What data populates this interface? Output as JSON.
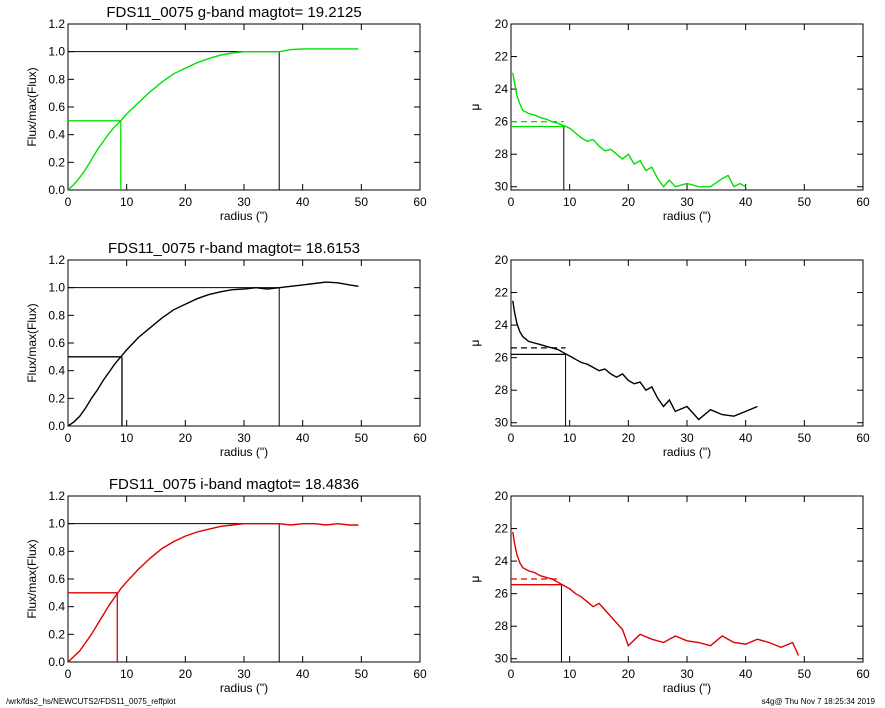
{
  "footer": {
    "left": "/wrk/fds2_hs/NEWCUTS2/FDS11_0075_reffplot",
    "right": "s4g@  Thu Nov  7 18:25:34 2019"
  },
  "chart_data": [
    {
      "type": "line",
      "panel": "g-band cumulative flux",
      "title": "FDS11_0075 g-band  magtot=       19.2125",
      "xlabel": "radius (\")",
      "ylabel": "Flux/max(Flux)",
      "xlim": [
        0,
        60
      ],
      "ylim": [
        0,
        1.2
      ],
      "xticks": [
        0,
        10,
        20,
        30,
        40,
        50,
        60
      ],
      "yticks": [
        0.0,
        0.2,
        0.4,
        0.6,
        0.8,
        1.0,
        1.2
      ],
      "color": "#00e000",
      "series": [
        {
          "x": [
            0,
            1,
            2,
            3,
            4,
            5,
            6,
            7,
            8,
            9,
            10,
            12,
            14,
            16,
            18,
            20,
            22,
            24,
            26,
            28,
            30,
            32,
            34,
            36,
            38,
            40,
            42,
            44,
            46,
            48,
            49.5
          ],
          "values": [
            0,
            0.04,
            0.09,
            0.15,
            0.22,
            0.29,
            0.35,
            0.41,
            0.46,
            0.5,
            0.55,
            0.63,
            0.71,
            0.78,
            0.84,
            0.88,
            0.92,
            0.95,
            0.975,
            0.99,
            1.0,
            1.0,
            1.0,
            1.0,
            1.015,
            1.02,
            1.02,
            1.02,
            1.02,
            1.02,
            1.02
          ]
        }
      ],
      "reference_lines": {
        "half_radius": 9,
        "half_level": 0.5,
        "total_radius": 36,
        "total_level": 1.0
      }
    },
    {
      "type": "line",
      "panel": "g-band surface brightness profile",
      "xlabel": "radius (\")",
      "ylabel": "μ",
      "xlim": [
        0,
        60
      ],
      "ylim": [
        30.2,
        20
      ],
      "xticks": [
        0,
        10,
        20,
        30,
        40,
        50,
        60
      ],
      "yticks": [
        20,
        22,
        24,
        26,
        28,
        30
      ],
      "color": "#00e000",
      "series": [
        {
          "x": [
            0.3,
            0.6,
            1,
            1.5,
            2,
            3,
            4,
            5,
            6,
            7,
            8,
            9,
            10,
            11,
            12,
            13,
            14,
            15,
            16,
            17,
            18,
            19,
            20,
            21,
            22,
            23,
            24,
            25,
            26,
            27,
            28,
            30,
            32,
            34,
            36,
            37,
            38,
            39,
            40
          ],
          "values": [
            23,
            23.6,
            24.4,
            24.9,
            25.3,
            25.5,
            25.6,
            25.75,
            25.85,
            26.0,
            26.1,
            26.25,
            26.4,
            26.7,
            27.0,
            27.2,
            27.1,
            27.5,
            27.8,
            27.7,
            28.0,
            28.3,
            28.0,
            28.6,
            28.4,
            29.0,
            28.8,
            29.5,
            30.0,
            29.6,
            30.0,
            29.8,
            30.0,
            30.0,
            29.5,
            29.3,
            30.0,
            29.8,
            30.0
          ]
        }
      ],
      "reference_lines": {
        "radius": 9,
        "mu_solid": 26.3,
        "mu_dashed": 26.0
      }
    },
    {
      "type": "line",
      "panel": "r-band cumulative flux",
      "title": "FDS11_0075 r-band  magtot=       18.6153",
      "xlabel": "radius (\")",
      "ylabel": "Flux/max(Flux)",
      "xlim": [
        0,
        60
      ],
      "ylim": [
        0,
        1.2
      ],
      "xticks": [
        0,
        10,
        20,
        30,
        40,
        50,
        60
      ],
      "yticks": [
        0.0,
        0.2,
        0.4,
        0.6,
        0.8,
        1.0,
        1.2
      ],
      "color": "#000000",
      "series": [
        {
          "x": [
            0,
            1,
            2,
            3,
            4,
            5,
            6,
            7,
            8,
            9,
            10,
            12,
            14,
            16,
            18,
            20,
            22,
            24,
            26,
            28,
            30,
            32,
            34,
            36,
            38,
            40,
            42,
            44,
            46,
            48,
            49.5
          ],
          "values": [
            0,
            0.03,
            0.07,
            0.13,
            0.2,
            0.26,
            0.33,
            0.39,
            0.45,
            0.5,
            0.55,
            0.64,
            0.71,
            0.78,
            0.84,
            0.88,
            0.92,
            0.95,
            0.97,
            0.985,
            0.99,
            1.0,
            0.99,
            1.0,
            1.01,
            1.02,
            1.03,
            1.04,
            1.035,
            1.02,
            1.01
          ]
        }
      ],
      "reference_lines": {
        "half_radius": 9.2,
        "half_level": 0.5,
        "total_radius": 36,
        "total_level": 1.0
      }
    },
    {
      "type": "line",
      "panel": "r-band surface brightness profile",
      "xlabel": "radius (\")",
      "ylabel": "μ",
      "xlim": [
        0,
        60
      ],
      "ylim": [
        30.2,
        20
      ],
      "xticks": [
        0,
        10,
        20,
        30,
        40,
        50,
        60
      ],
      "yticks": [
        20,
        22,
        24,
        26,
        28,
        30
      ],
      "color": "#000000",
      "series": [
        {
          "x": [
            0.3,
            0.6,
            1,
            1.5,
            2,
            3,
            4,
            5,
            6,
            7,
            8,
            9,
            10,
            11,
            12,
            13,
            14,
            15,
            16,
            17,
            18,
            19,
            20,
            21,
            22,
            23,
            24,
            25,
            26,
            27,
            28,
            30,
            32,
            34,
            36,
            38,
            40,
            42
          ],
          "values": [
            22.5,
            23.2,
            23.9,
            24.4,
            24.7,
            25.0,
            25.1,
            25.2,
            25.3,
            25.4,
            25.5,
            25.7,
            25.9,
            26.1,
            26.3,
            26.4,
            26.6,
            26.8,
            26.7,
            27.0,
            27.2,
            27.0,
            27.4,
            27.6,
            27.5,
            28.0,
            27.8,
            28.5,
            29.0,
            28.6,
            29.3,
            29.0,
            29.8,
            29.2,
            29.5,
            29.6,
            29.3,
            29.0
          ]
        }
      ],
      "reference_lines": {
        "radius": 9.3,
        "mu_solid": 25.8,
        "mu_dashed": 25.4
      }
    },
    {
      "type": "line",
      "panel": "i-band cumulative flux",
      "title": "FDS11_0075 i-band  magtot=       18.4836",
      "xlabel": "radius (\")",
      "ylabel": "Flux/max(Flux)",
      "xlim": [
        0,
        60
      ],
      "ylim": [
        0,
        1.2
      ],
      "xticks": [
        0,
        10,
        20,
        30,
        40,
        50,
        60
      ],
      "yticks": [
        0.0,
        0.2,
        0.4,
        0.6,
        0.8,
        1.0,
        1.2
      ],
      "color": "#e00000",
      "series": [
        {
          "x": [
            0,
            1,
            2,
            3,
            4,
            5,
            6,
            7,
            8,
            9,
            10,
            12,
            14,
            16,
            18,
            20,
            22,
            24,
            26,
            28,
            30,
            32,
            34,
            36,
            38,
            40,
            42,
            44,
            46,
            48,
            49.5
          ],
          "values": [
            0,
            0.04,
            0.08,
            0.14,
            0.2,
            0.27,
            0.34,
            0.41,
            0.47,
            0.53,
            0.58,
            0.67,
            0.75,
            0.82,
            0.87,
            0.91,
            0.94,
            0.96,
            0.98,
            0.99,
            1.0,
            1.0,
            1.0,
            1.0,
            0.99,
            1.0,
            1.0,
            0.99,
            1.0,
            0.99,
            0.99
          ]
        }
      ],
      "reference_lines": {
        "half_radius": 8.4,
        "half_level": 0.5,
        "total_radius": 36,
        "total_level": 1.0
      }
    },
    {
      "type": "line",
      "panel": "i-band surface brightness profile",
      "xlabel": "radius (\")",
      "ylabel": "μ",
      "xlim": [
        0,
        60
      ],
      "ylim": [
        30.2,
        20
      ],
      "xticks": [
        0,
        10,
        20,
        30,
        40,
        50,
        60
      ],
      "yticks": [
        20,
        22,
        24,
        26,
        28,
        30
      ],
      "color": "#e00000",
      "series": [
        {
          "x": [
            0.3,
            0.6,
            1,
            1.5,
            2,
            3,
            4,
            5,
            6,
            7,
            8,
            9,
            10,
            11,
            12,
            13,
            14,
            15,
            16,
            17,
            18,
            19,
            20,
            22,
            24,
            26,
            28,
            30,
            32,
            34,
            36,
            38,
            40,
            42,
            44,
            46,
            48,
            49
          ],
          "values": [
            22.2,
            22.9,
            23.6,
            24.1,
            24.4,
            24.6,
            24.7,
            24.9,
            25.0,
            25.1,
            25.3,
            25.5,
            25.7,
            26.0,
            26.2,
            26.5,
            26.8,
            26.6,
            27.0,
            27.4,
            27.8,
            28.2,
            29.2,
            28.5,
            28.8,
            29.0,
            28.6,
            28.9,
            29.0,
            29.2,
            28.6,
            29.0,
            29.1,
            28.8,
            29.0,
            29.3,
            29.0,
            29.8
          ]
        }
      ],
      "reference_lines": {
        "radius": 8.6,
        "mu_solid": 25.45,
        "mu_dashed": 25.1
      }
    }
  ]
}
